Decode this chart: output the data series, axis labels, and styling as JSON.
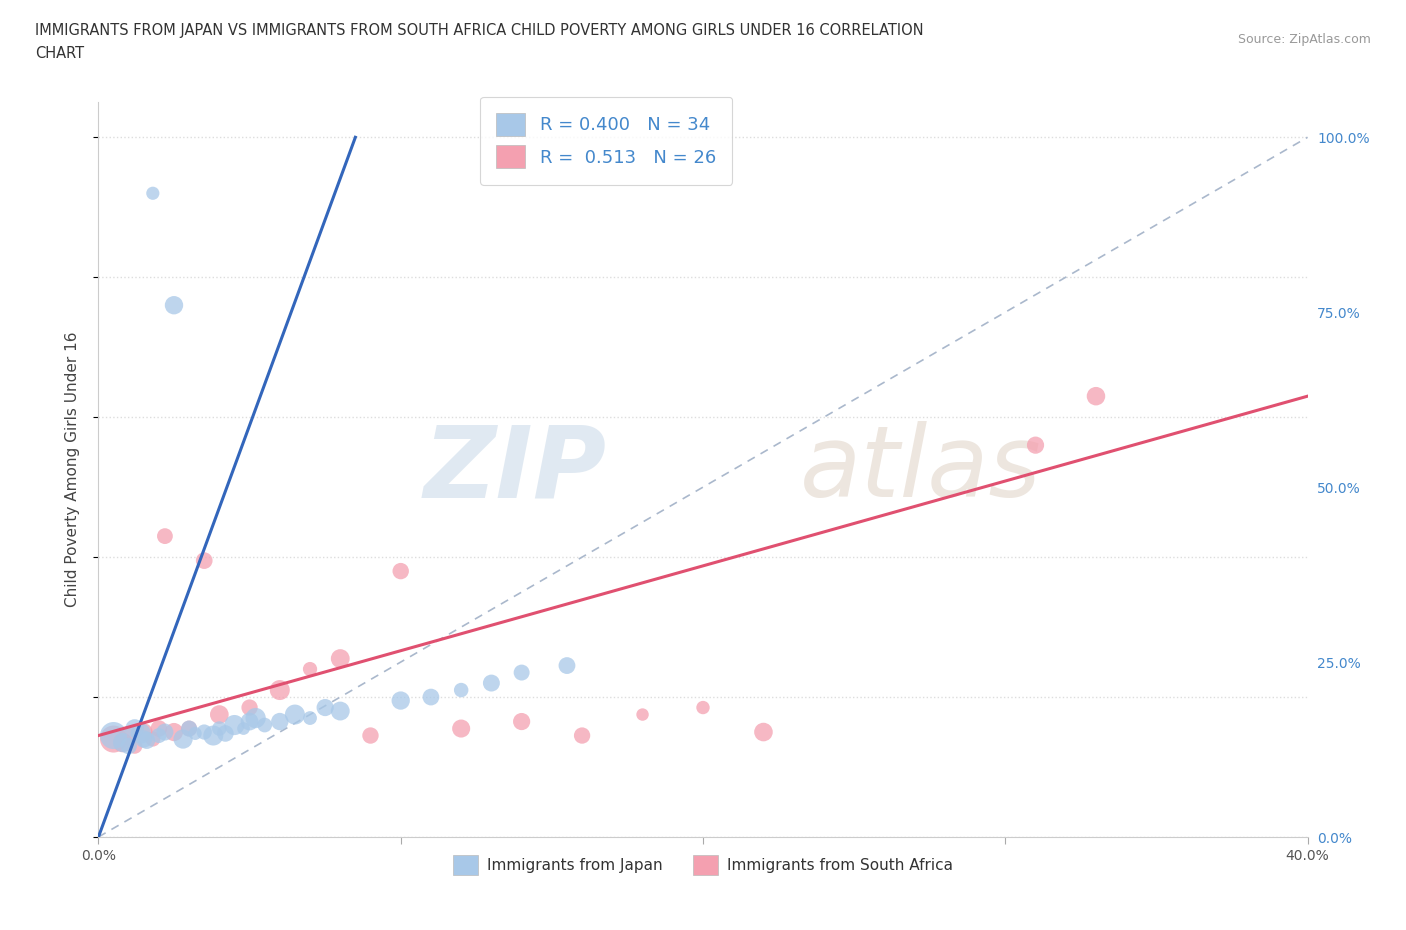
{
  "title_line1": "IMMIGRANTS FROM JAPAN VS IMMIGRANTS FROM SOUTH AFRICA CHILD POVERTY AMONG GIRLS UNDER 16 CORRELATION",
  "title_line2": "CHART",
  "source_text": "Source: ZipAtlas.com",
  "ylabel": "Child Poverty Among Girls Under 16",
  "xlim": [
    0.0,
    0.4
  ],
  "ylim": [
    0.0,
    1.05
  ],
  "x_ticks": [
    0.0,
    0.1,
    0.2,
    0.3,
    0.4
  ],
  "x_tick_labels": [
    "0.0%",
    "",
    "",
    "",
    "40.0%"
  ],
  "y_ticks": [
    0.0,
    0.25,
    0.5,
    0.75,
    1.0
  ],
  "y_tick_labels_right": [
    "0.0%",
    "25.0%",
    "50.0%",
    "75.0%",
    "100.0%"
  ],
  "legend_label_japan": "R = 0.400   N = 34",
  "legend_label_sa": "R =  0.513   N = 26",
  "japan_color": "#a8c8e8",
  "japan_line_color": "#3366bb",
  "sa_color": "#f4a0b0",
  "sa_line_color": "#e05070",
  "diagonal_color": "#aab8cc",
  "background_color": "#ffffff",
  "grid_color": "#dddddd",
  "japan_scatter_x": [
    0.005,
    0.008,
    0.01,
    0.012,
    0.014,
    0.015,
    0.016,
    0.018,
    0.02,
    0.022,
    0.025,
    0.028,
    0.03,
    0.032,
    0.035,
    0.038,
    0.04,
    0.042,
    0.045,
    0.048,
    0.05,
    0.052,
    0.055,
    0.06,
    0.065,
    0.07,
    0.075,
    0.08,
    0.1,
    0.11,
    0.12,
    0.13,
    0.14,
    0.155
  ],
  "japan_scatter_y": [
    0.145,
    0.135,
    0.13,
    0.155,
    0.148,
    0.14,
    0.138,
    0.92,
    0.145,
    0.15,
    0.76,
    0.14,
    0.155,
    0.148,
    0.15,
    0.145,
    0.155,
    0.148,
    0.16,
    0.155,
    0.165,
    0.17,
    0.16,
    0.165,
    0.175,
    0.17,
    0.185,
    0.18,
    0.195,
    0.2,
    0.21,
    0.22,
    0.235,
    0.245
  ],
  "sa_scatter_x": [
    0.005,
    0.008,
    0.01,
    0.012,
    0.015,
    0.018,
    0.02,
    0.022,
    0.025,
    0.03,
    0.035,
    0.04,
    0.05,
    0.06,
    0.07,
    0.08,
    0.09,
    0.1,
    0.12,
    0.14,
    0.16,
    0.18,
    0.2,
    0.22,
    0.31,
    0.33
  ],
  "sa_scatter_y": [
    0.14,
    0.135,
    0.145,
    0.13,
    0.15,
    0.14,
    0.155,
    0.43,
    0.15,
    0.155,
    0.395,
    0.175,
    0.185,
    0.21,
    0.24,
    0.255,
    0.145,
    0.38,
    0.155,
    0.165,
    0.145,
    0.175,
    0.185,
    0.15,
    0.56,
    0.63
  ],
  "japan_line_x0": 0.0,
  "japan_line_x1": 0.085,
  "japan_line_y0": 0.0,
  "japan_line_y1": 1.0,
  "sa_line_x0": 0.0,
  "sa_line_x1": 0.4,
  "sa_line_y0": 0.145,
  "sa_line_y1": 0.63,
  "bottom_legend_japan": "Immigrants from Japan",
  "bottom_legend_sa": "Immigrants from South Africa"
}
